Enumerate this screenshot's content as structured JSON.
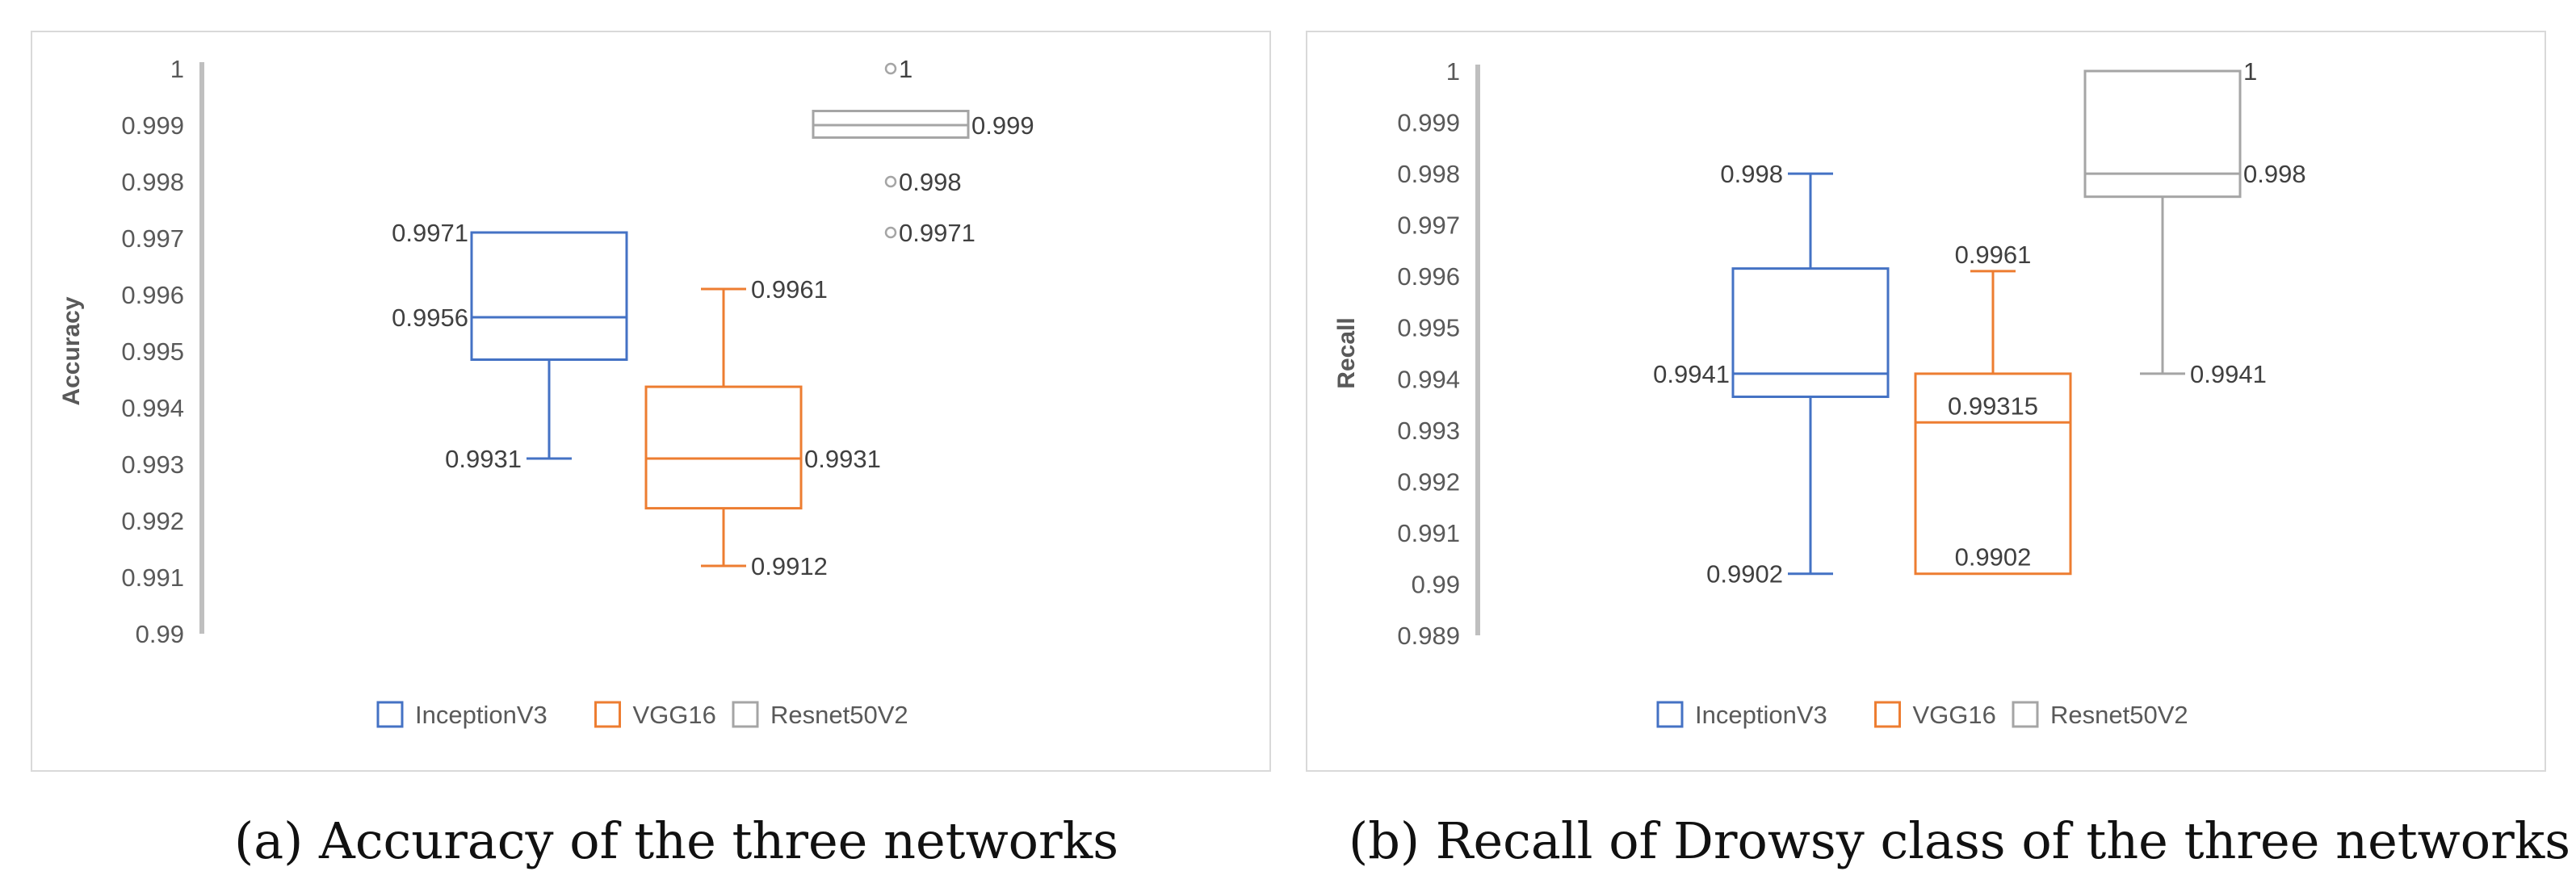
{
  "panels": [
    {
      "caption": "(a)  Accuracy of the three networks",
      "chart_data": {
        "type": "box",
        "ylabel": "Accuracy",
        "xlabel": "",
        "ylim": [
          0.99,
          1.0
        ],
        "yticks": [
          "1",
          "0.999",
          "0.998",
          "0.997",
          "0.996",
          "0.995",
          "0.994",
          "0.993",
          "0.992",
          "0.991",
          "0.99"
        ],
        "grid": false,
        "legend_position": "bottom",
        "series": [
          {
            "name": "InceptionV3",
            "color": "#4472C4",
            "whisker_low": 0.9931,
            "q1": 0.99485,
            "median": 0.9956,
            "q3": 0.9971,
            "whisker_high": 0.9971,
            "outliers": [],
            "labels": [
              {
                "text": "0.9971",
                "value": 0.9971,
                "side": "left"
              },
              {
                "text": "0.9956",
                "value": 0.9956,
                "side": "left"
              },
              {
                "text": "0.9931",
                "value": 0.9931,
                "side": "left"
              }
            ]
          },
          {
            "name": "VGG16",
            "color": "#ED7D31",
            "whisker_low": 0.9912,
            "q1": 0.99222,
            "median": 0.9931,
            "q3": 0.99437,
            "whisker_high": 0.9961,
            "outliers": [],
            "labels": [
              {
                "text": "0.9961",
                "value": 0.9961,
                "side": "right"
              },
              {
                "text": "0.9931",
                "value": 0.9931,
                "side": "right"
              },
              {
                "text": "0.9912",
                "value": 0.9912,
                "side": "right"
              }
            ]
          },
          {
            "name": "Resnet50V2",
            "color": "#A5A5A5",
            "whisker_low": 0.99878,
            "q1": 0.99878,
            "median": 0.999,
            "q3": 0.99925,
            "whisker_high": 0.99925,
            "outliers": [
              1.0,
              0.998,
              0.9971
            ],
            "labels": [
              {
                "text": "1",
                "value": 1.0,
                "side": "right"
              },
              {
                "text": "0.999",
                "value": 0.999,
                "side": "right"
              },
              {
                "text": "0.998",
                "value": 0.998,
                "side": "right"
              },
              {
                "text": "0.9971",
                "value": 0.9971,
                "side": "right"
              }
            ]
          }
        ]
      }
    },
    {
      "caption": "(b)  Recall of Drowsy class of the three networks",
      "chart_data": {
        "type": "box",
        "ylabel": "Recall",
        "xlabel": "",
        "ylim": [
          0.989,
          1.0
        ],
        "yticks": [
          "1",
          "0.999",
          "0.998",
          "0.997",
          "0.996",
          "0.995",
          "0.994",
          "0.993",
          "0.992",
          "0.991",
          "0.99",
          "0.989"
        ],
        "grid": false,
        "legend_position": "bottom",
        "series": [
          {
            "name": "InceptionV3",
            "color": "#4472C4",
            "whisker_low": 0.9902,
            "q1": 0.99365,
            "median": 0.9941,
            "q3": 0.99615,
            "whisker_high": 0.998,
            "outliers": [],
            "labels": [
              {
                "text": "0.998",
                "value": 0.998,
                "side": "left"
              },
              {
                "text": "0.9941",
                "value": 0.9941,
                "side": "left"
              },
              {
                "text": "0.9902",
                "value": 0.9902,
                "side": "left"
              }
            ]
          },
          {
            "name": "VGG16",
            "color": "#ED7D31",
            "whisker_low": 0.9902,
            "q1": 0.9902,
            "median": 0.99315,
            "q3": 0.9941,
            "whisker_high": 0.9961,
            "outliers": [],
            "labels": [
              {
                "text": "0.9961",
                "value": 0.9961,
                "side": "above"
              },
              {
                "text": "0.99315",
                "value": 0.99315,
                "side": "above"
              },
              {
                "text": "0.9902",
                "value": 0.9902,
                "side": "above"
              }
            ]
          },
          {
            "name": "Resnet50V2",
            "color": "#A5A5A5",
            "whisker_low": 0.9941,
            "q1": 0.99755,
            "median": 0.998,
            "q3": 1.0,
            "whisker_high": 1.0,
            "outliers": [],
            "labels": [
              {
                "text": "1",
                "value": 1.0,
                "side": "right"
              },
              {
                "text": "0.998",
                "value": 0.998,
                "side": "right"
              },
              {
                "text": "0.9941",
                "value": 0.9941,
                "side": "right"
              }
            ]
          }
        ]
      }
    }
  ]
}
